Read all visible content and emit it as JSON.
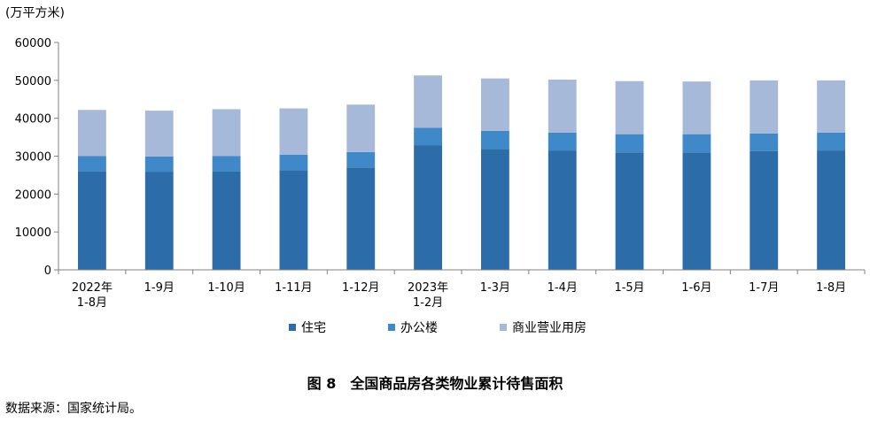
{
  "unit_label": "(万平方米)",
  "chart_data": {
    "type": "bar",
    "stacked": true,
    "title": "全国商品房各类物业累计待售面积",
    "figure_number": "图 8",
    "ylabel": "(万平方米)",
    "ylim": [
      0,
      60000
    ],
    "yticks": [
      0,
      10000,
      20000,
      30000,
      40000,
      50000,
      60000
    ],
    "categories": [
      [
        "2022年",
        "1-8月"
      ],
      [
        "1-9月"
      ],
      [
        "1-10月"
      ],
      [
        "1-11月"
      ],
      [
        "1-12月"
      ],
      [
        "2023年",
        "1-2月"
      ],
      [
        "1-3月"
      ],
      [
        "1-4月"
      ],
      [
        "1-5月"
      ],
      [
        "1-6月"
      ],
      [
        "1-7月"
      ],
      [
        "1-8月"
      ]
    ],
    "series": [
      {
        "name": "住宅",
        "color": "#2c6ca8",
        "values": [
          26000,
          25900,
          26000,
          26300,
          27000,
          32800,
          31900,
          31400,
          31000,
          31000,
          31300,
          31500
        ]
      },
      {
        "name": "办公楼",
        "color": "#3f89c8",
        "values": [
          4000,
          4000,
          4000,
          4100,
          4100,
          4700,
          4800,
          4800,
          4800,
          4800,
          4700,
          4700
        ]
      },
      {
        "name": "商业营业用房",
        "color": "#a6b9d9",
        "values": [
          12200,
          12100,
          12400,
          12200,
          12500,
          13800,
          13800,
          14000,
          14000,
          13900,
          14000,
          13800
        ]
      }
    ],
    "legend_position": "bottom"
  },
  "footer": {
    "fig_number": "图 8",
    "fig_title": "全国商品房各类物业累计待售面积",
    "source": "数据来源：国家统计局。"
  }
}
